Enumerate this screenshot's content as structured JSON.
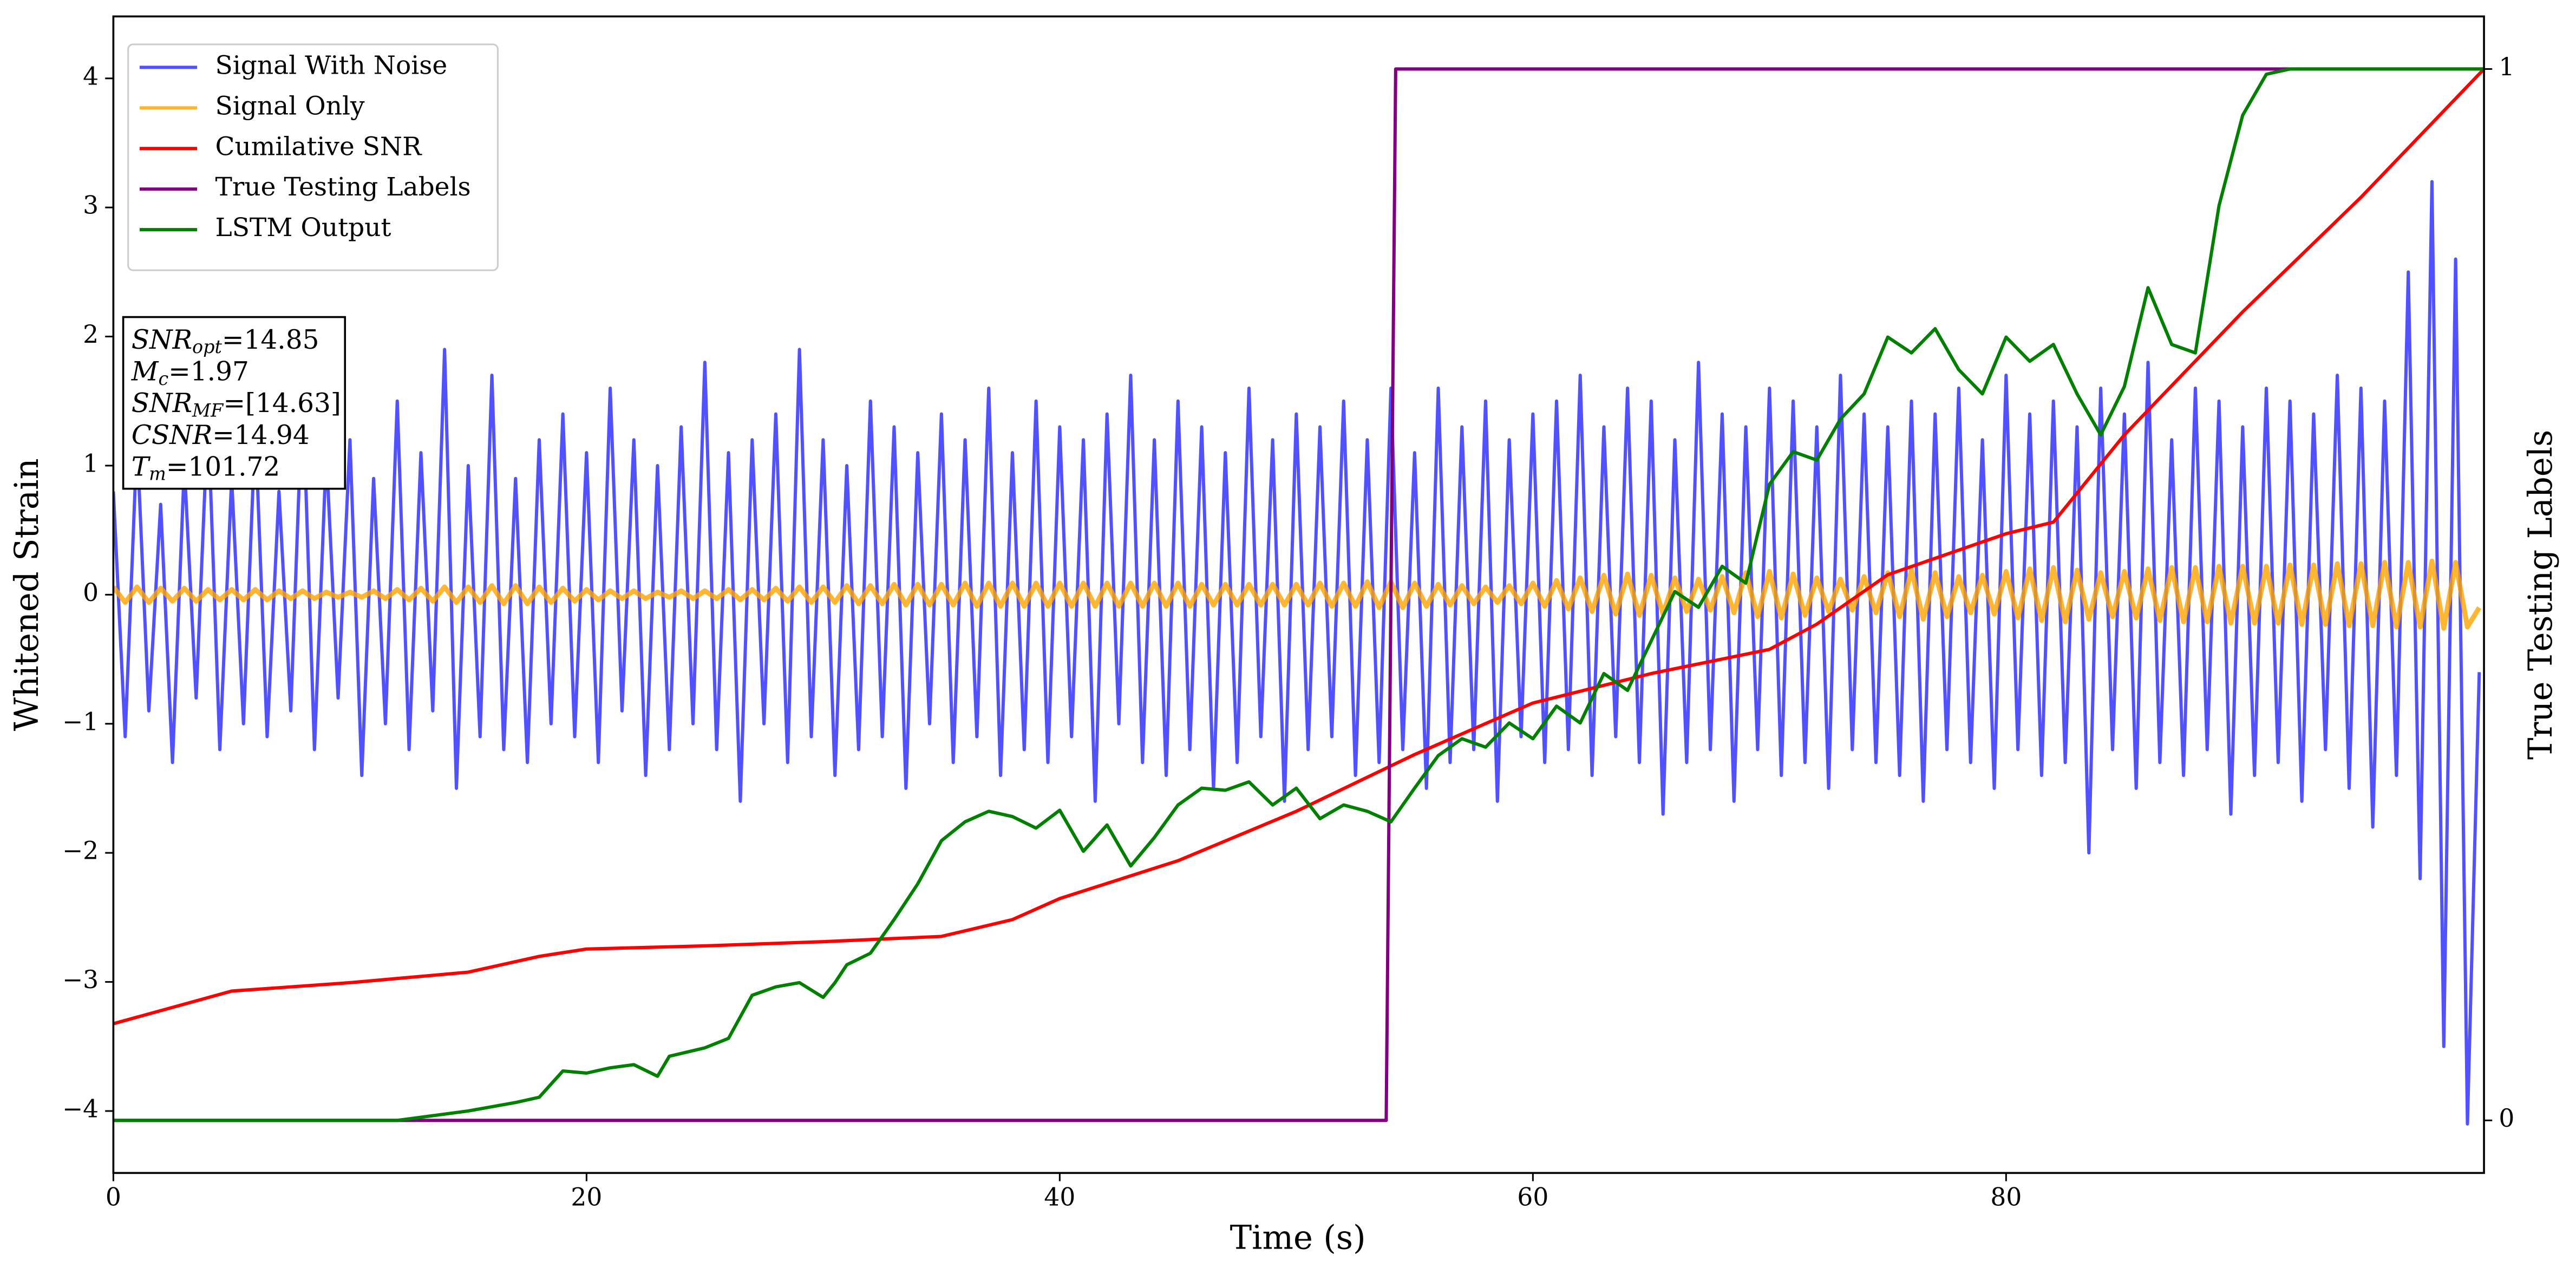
{
  "chart_data": {
    "type": "line",
    "xlabel": "Time (s)",
    "ylabel": "Whitened Strain",
    "y2label": "True Testing Labels",
    "xlim": [
      0,
      100.2
    ],
    "xticks": [
      0,
      20,
      40,
      60,
      80
    ],
    "ylim": [
      -4.48,
      4.48
    ],
    "yticks": [
      {
        "value": -4,
        "label": "−4"
      },
      {
        "value": -3,
        "label": "−3"
      },
      {
        "value": -2,
        "label": "−2"
      },
      {
        "value": -1,
        "label": "−1"
      },
      0,
      1,
      2,
      3,
      4
    ],
    "y2lim": [
      -0.05,
      1.05
    ],
    "y2ticks": [
      0,
      1
    ],
    "legend": "upper left",
    "annotation": [
      {
        "base": "SNR",
        "sub": "opt",
        "text": "=14.85"
      },
      {
        "base": "M",
        "sub": "c",
        "text": "=1.97"
      },
      {
        "base": "SNR",
        "sub": "MF",
        "text": "=[14.63]"
      },
      {
        "base": "CSNR",
        "text": "=14.94"
      },
      {
        "base": "T",
        "sub": "m",
        "text": "=101.72"
      }
    ],
    "x": [
      0,
      0.5,
      1,
      1.5,
      2,
      2.5,
      3,
      3.5,
      4,
      4.5,
      5,
      5.5,
      6,
      6.5,
      7,
      7.5,
      8,
      8.5,
      9,
      9.5,
      10,
      10.5,
      11,
      11.5,
      12,
      12.5,
      13,
      13.5,
      14,
      14.5,
      15,
      15.5,
      16,
      16.5,
      17,
      17.5,
      18,
      18.5,
      19,
      19.5,
      20,
      20.5,
      21,
      21.5,
      22,
      22.5,
      23,
      23.5,
      24,
      24.5,
      25,
      25.5,
      26,
      26.5,
      27,
      27.5,
      28,
      28.5,
      29,
      29.5,
      30,
      30.5,
      31,
      31.5,
      32,
      32.5,
      33,
      33.5,
      34,
      34.5,
      35,
      35.5,
      36,
      36.5,
      37,
      37.5,
      38,
      38.5,
      39,
      39.5,
      40,
      40.5,
      41,
      41.5,
      42,
      42.5,
      43,
      43.5,
      44,
      44.5,
      45,
      45.5,
      46,
      46.5,
      47,
      47.5,
      48,
      48.5,
      49,
      49.5,
      50,
      50.5,
      51,
      51.5,
      52,
      52.5,
      53,
      53.5,
      54,
      54.5,
      55,
      55.5,
      56,
      56.5,
      57,
      57.5,
      58,
      58.5,
      59,
      59.5,
      60,
      60.5,
      61,
      61.5,
      62,
      62.5,
      63,
      63.5,
      64,
      64.5,
      65,
      65.5,
      66,
      66.5,
      67,
      67.5,
      68,
      68.5,
      69,
      69.5,
      70,
      70.5,
      71,
      71.5,
      72,
      72.5,
      73,
      73.5,
      74,
      74.5,
      75,
      75.5,
      76,
      76.5,
      77,
      77.5,
      78,
      78.5,
      79,
      79.5,
      80,
      80.5,
      81,
      81.5,
      82,
      82.5,
      83,
      83.5,
      84,
      84.5,
      85,
      85.5,
      86,
      86.5,
      87,
      87.5,
      88,
      88.5,
      89,
      89.5,
      90,
      90.5,
      91,
      91.5,
      92,
      92.5,
      93,
      93.5,
      94,
      94.5,
      95,
      95.5,
      96,
      96.5,
      97,
      97.5,
      98,
      98.5,
      99,
      99.5,
      100
    ],
    "series": [
      {
        "name": "Signal With Noise",
        "color": "#3333ff",
        "alpha": 0.85,
        "values": [
          0.8,
          -1.1,
          1.2,
          -0.9,
          0.7,
          -1.3,
          1.0,
          -0.8,
          1.4,
          -1.2,
          0.9,
          -1.0,
          1.3,
          -1.1,
          0.8,
          -0.9,
          1.6,
          -1.2,
          1.1,
          -0.8,
          1.2,
          -1.4,
          0.9,
          -1.0,
          1.5,
          -1.2,
          1.1,
          -0.9,
          1.9,
          -1.5,
          1.0,
          -1.1,
          1.7,
          -1.2,
          0.9,
          -1.3,
          1.2,
          -1.0,
          1.4,
          -1.1,
          1.1,
          -1.3,
          1.6,
          -0.9,
          1.2,
          -1.4,
          1.0,
          -1.2,
          1.3,
          -1.0,
          1.8,
          -1.2,
          1.1,
          -1.6,
          1.2,
          -1.0,
          1.4,
          -1.3,
          1.9,
          -1.1,
          1.2,
          -1.4,
          1.0,
          -1.2,
          1.5,
          -1.1,
          1.3,
          -1.5,
          1.1,
          -1.0,
          1.4,
          -1.3,
          1.2,
          -1.1,
          1.6,
          -1.4,
          1.1,
          -1.2,
          1.5,
          -1.3,
          1.3,
          -1.1,
          1.2,
          -1.6,
          1.4,
          -1.0,
          1.7,
          -1.3,
          1.2,
          -1.4,
          1.5,
          -1.2,
          1.3,
          -1.5,
          1.1,
          -1.3,
          1.6,
          -1.1,
          1.2,
          -1.6,
          1.4,
          -1.2,
          1.3,
          -1.1,
          1.5,
          -1.4,
          1.2,
          -1.3,
          1.6,
          -1.2,
          1.1,
          -1.5,
          1.6,
          -1.3,
          1.3,
          -1.2,
          1.5,
          -1.6,
          1.2,
          -1.1,
          1.4,
          -1.3,
          1.5,
          -1.2,
          1.7,
          -1.4,
          1.3,
          -1.1,
          1.6,
          -1.3,
          1.5,
          -1.7,
          1.2,
          -1.3,
          1.8,
          -1.2,
          1.4,
          -1.6,
          1.3,
          -1.2,
          1.6,
          -1.4,
          1.5,
          -1.3,
          1.3,
          -1.5,
          1.7,
          -1.2,
          1.4,
          -1.3,
          1.3,
          -1.4,
          1.5,
          -1.6,
          1.4,
          -1.2,
          1.6,
          -1.3,
          1.2,
          -1.5,
          1.7,
          -1.2,
          1.4,
          -1.4,
          1.5,
          -1.3,
          1.3,
          -2.0,
          1.6,
          -1.2,
          1.4,
          -1.5,
          1.8,
          -1.3,
          1.2,
          -1.4,
          1.6,
          -1.2,
          1.5,
          -1.7,
          1.3,
          -1.4,
          1.6,
          -1.3,
          1.5,
          -1.6,
          1.4,
          -1.2,
          1.7,
          -1.5,
          1.6,
          -1.8,
          1.5,
          -1.4,
          2.5,
          -2.2,
          3.2,
          -3.5,
          2.6,
          -4.1,
          -0.6
        ]
      },
      {
        "name": "Signal Only",
        "color": "#ffa500",
        "alpha": 0.8,
        "values": [
          0.06,
          -0.06,
          0.06,
          -0.06,
          0.05,
          -0.05,
          0.05,
          -0.05,
          0.04,
          -0.04,
          0.04,
          -0.04,
          0.04,
          -0.04,
          0.03,
          -0.03,
          0.03,
          -0.03,
          0.02,
          -0.02,
          0.02,
          -0.02,
          0.03,
          -0.03,
          0.04,
          -0.04,
          0.05,
          -0.05,
          0.06,
          -0.06,
          0.06,
          -0.06,
          0.07,
          -0.07,
          0.07,
          -0.07,
          0.06,
          -0.06,
          0.05,
          -0.05,
          0.04,
          -0.04,
          0.03,
          -0.03,
          0.03,
          -0.03,
          0.02,
          -0.02,
          0.03,
          -0.03,
          0.03,
          -0.03,
          0.04,
          -0.04,
          0.04,
          -0.04,
          0.05,
          -0.05,
          0.06,
          -0.06,
          0.06,
          -0.06,
          0.07,
          -0.07,
          0.07,
          -0.07,
          0.08,
          -0.08,
          0.08,
          -0.08,
          0.08,
          -0.08,
          0.09,
          -0.09,
          0.09,
          -0.09,
          0.09,
          -0.09,
          0.09,
          -0.09,
          0.09,
          -0.09,
          0.09,
          -0.09,
          0.09,
          -0.09,
          0.09,
          -0.09,
          0.09,
          -0.09,
          0.09,
          -0.09,
          0.08,
          -0.08,
          0.08,
          -0.08,
          0.08,
          -0.08,
          0.08,
          -0.08,
          0.08,
          -0.08,
          0.09,
          -0.09,
          0.09,
          -0.09,
          0.1,
          -0.1,
          0.1,
          -0.1,
          0.09,
          -0.09,
          0.08,
          -0.08,
          0.07,
          -0.07,
          0.06,
          -0.06,
          0.07,
          -0.07,
          0.09,
          -0.09,
          0.11,
          -0.11,
          0.13,
          -0.13,
          0.15,
          -0.15,
          0.16,
          -0.16,
          0.15,
          -0.15,
          0.13,
          -0.13,
          0.12,
          -0.12,
          0.14,
          -0.14,
          0.17,
          -0.17,
          0.18,
          -0.18,
          0.16,
          -0.16,
          0.13,
          -0.13,
          0.12,
          -0.12,
          0.14,
          -0.14,
          0.17,
          -0.17,
          0.19,
          -0.19,
          0.17,
          -0.17,
          0.14,
          -0.14,
          0.15,
          -0.15,
          0.18,
          -0.18,
          0.2,
          -0.2,
          0.21,
          -0.21,
          0.19,
          -0.19,
          0.17,
          -0.17,
          0.18,
          -0.18,
          0.2,
          -0.2,
          0.21,
          -0.21,
          0.21,
          -0.21,
          0.22,
          -0.22,
          0.22,
          -0.22,
          0.22,
          -0.22,
          0.23,
          -0.23,
          0.23,
          -0.23,
          0.24,
          -0.24,
          0.24,
          -0.24,
          0.25,
          -0.25,
          0.25,
          -0.25,
          0.26,
          -0.26,
          0.25,
          -0.25,
          -0.1
        ]
      },
      {
        "name": "Cumilative SNR",
        "color": "#ff0000",
        "axis": "y2",
        "x": [
          0,
          5,
          10,
          15,
          18,
          20,
          25,
          30,
          35,
          38,
          40,
          45,
          50,
          55,
          60,
          65,
          70,
          72,
          75,
          80,
          82,
          85,
          90,
          95,
          100.2
        ],
        "values": [
          0.092,
          0.123,
          0.131,
          0.141,
          0.156,
          0.163,
          0.166,
          0.17,
          0.175,
          0.191,
          0.211,
          0.247,
          0.294,
          0.348,
          0.397,
          0.425,
          0.448,
          0.472,
          0.519,
          0.558,
          0.569,
          0.652,
          0.769,
          0.878,
          1.0
        ]
      },
      {
        "name": "True Testing Labels",
        "color": "#800080",
        "axis": "y2",
        "x": [
          0,
          53.8,
          54.2,
          100.2
        ],
        "values": [
          0,
          0,
          1,
          1
        ]
      },
      {
        "name": "LSTM Output",
        "color": "#008000",
        "axis": "y2",
        "x": [
          0,
          12,
          15,
          17,
          18,
          19,
          20,
          21,
          22,
          23,
          23.5,
          25,
          26,
          27,
          28,
          29,
          30,
          30.5,
          31,
          32,
          33,
          34,
          35,
          36,
          37,
          38,
          39,
          40,
          41,
          42,
          43,
          44,
          45,
          46,
          47,
          48,
          49,
          50,
          51,
          52,
          53,
          54,
          55,
          56,
          57,
          58,
          59,
          60,
          61,
          62,
          63,
          64,
          65,
          66,
          67,
          68,
          69,
          70,
          71,
          72,
          73,
          74,
          75,
          76,
          77,
          78,
          79,
          80,
          81,
          82,
          83,
          84,
          85,
          86,
          87,
          88,
          89,
          90,
          91,
          92,
          100.2
        ],
        "values": [
          0,
          0,
          0.009,
          0.017,
          0.022,
          0.047,
          0.045,
          0.05,
          0.053,
          0.042,
          0.061,
          0.069,
          0.078,
          0.119,
          0.127,
          0.131,
          0.117,
          0.131,
          0.148,
          0.159,
          0.191,
          0.225,
          0.266,
          0.284,
          0.294,
          0.289,
          0.278,
          0.295,
          0.256,
          0.281,
          0.242,
          0.269,
          0.3,
          0.316,
          0.314,
          0.322,
          0.3,
          0.316,
          0.287,
          0.3,
          0.294,
          0.284,
          0.316,
          0.347,
          0.363,
          0.355,
          0.378,
          0.363,
          0.394,
          0.378,
          0.425,
          0.409,
          0.456,
          0.503,
          0.488,
          0.527,
          0.511,
          0.605,
          0.636,
          0.628,
          0.667,
          0.691,
          0.745,
          0.73,
          0.753,
          0.714,
          0.691,
          0.745,
          0.722,
          0.738,
          0.691,
          0.652,
          0.698,
          0.792,
          0.738,
          0.73,
          0.87,
          0.956,
          0.995,
          1.0,
          1.0
        ]
      }
    ]
  }
}
